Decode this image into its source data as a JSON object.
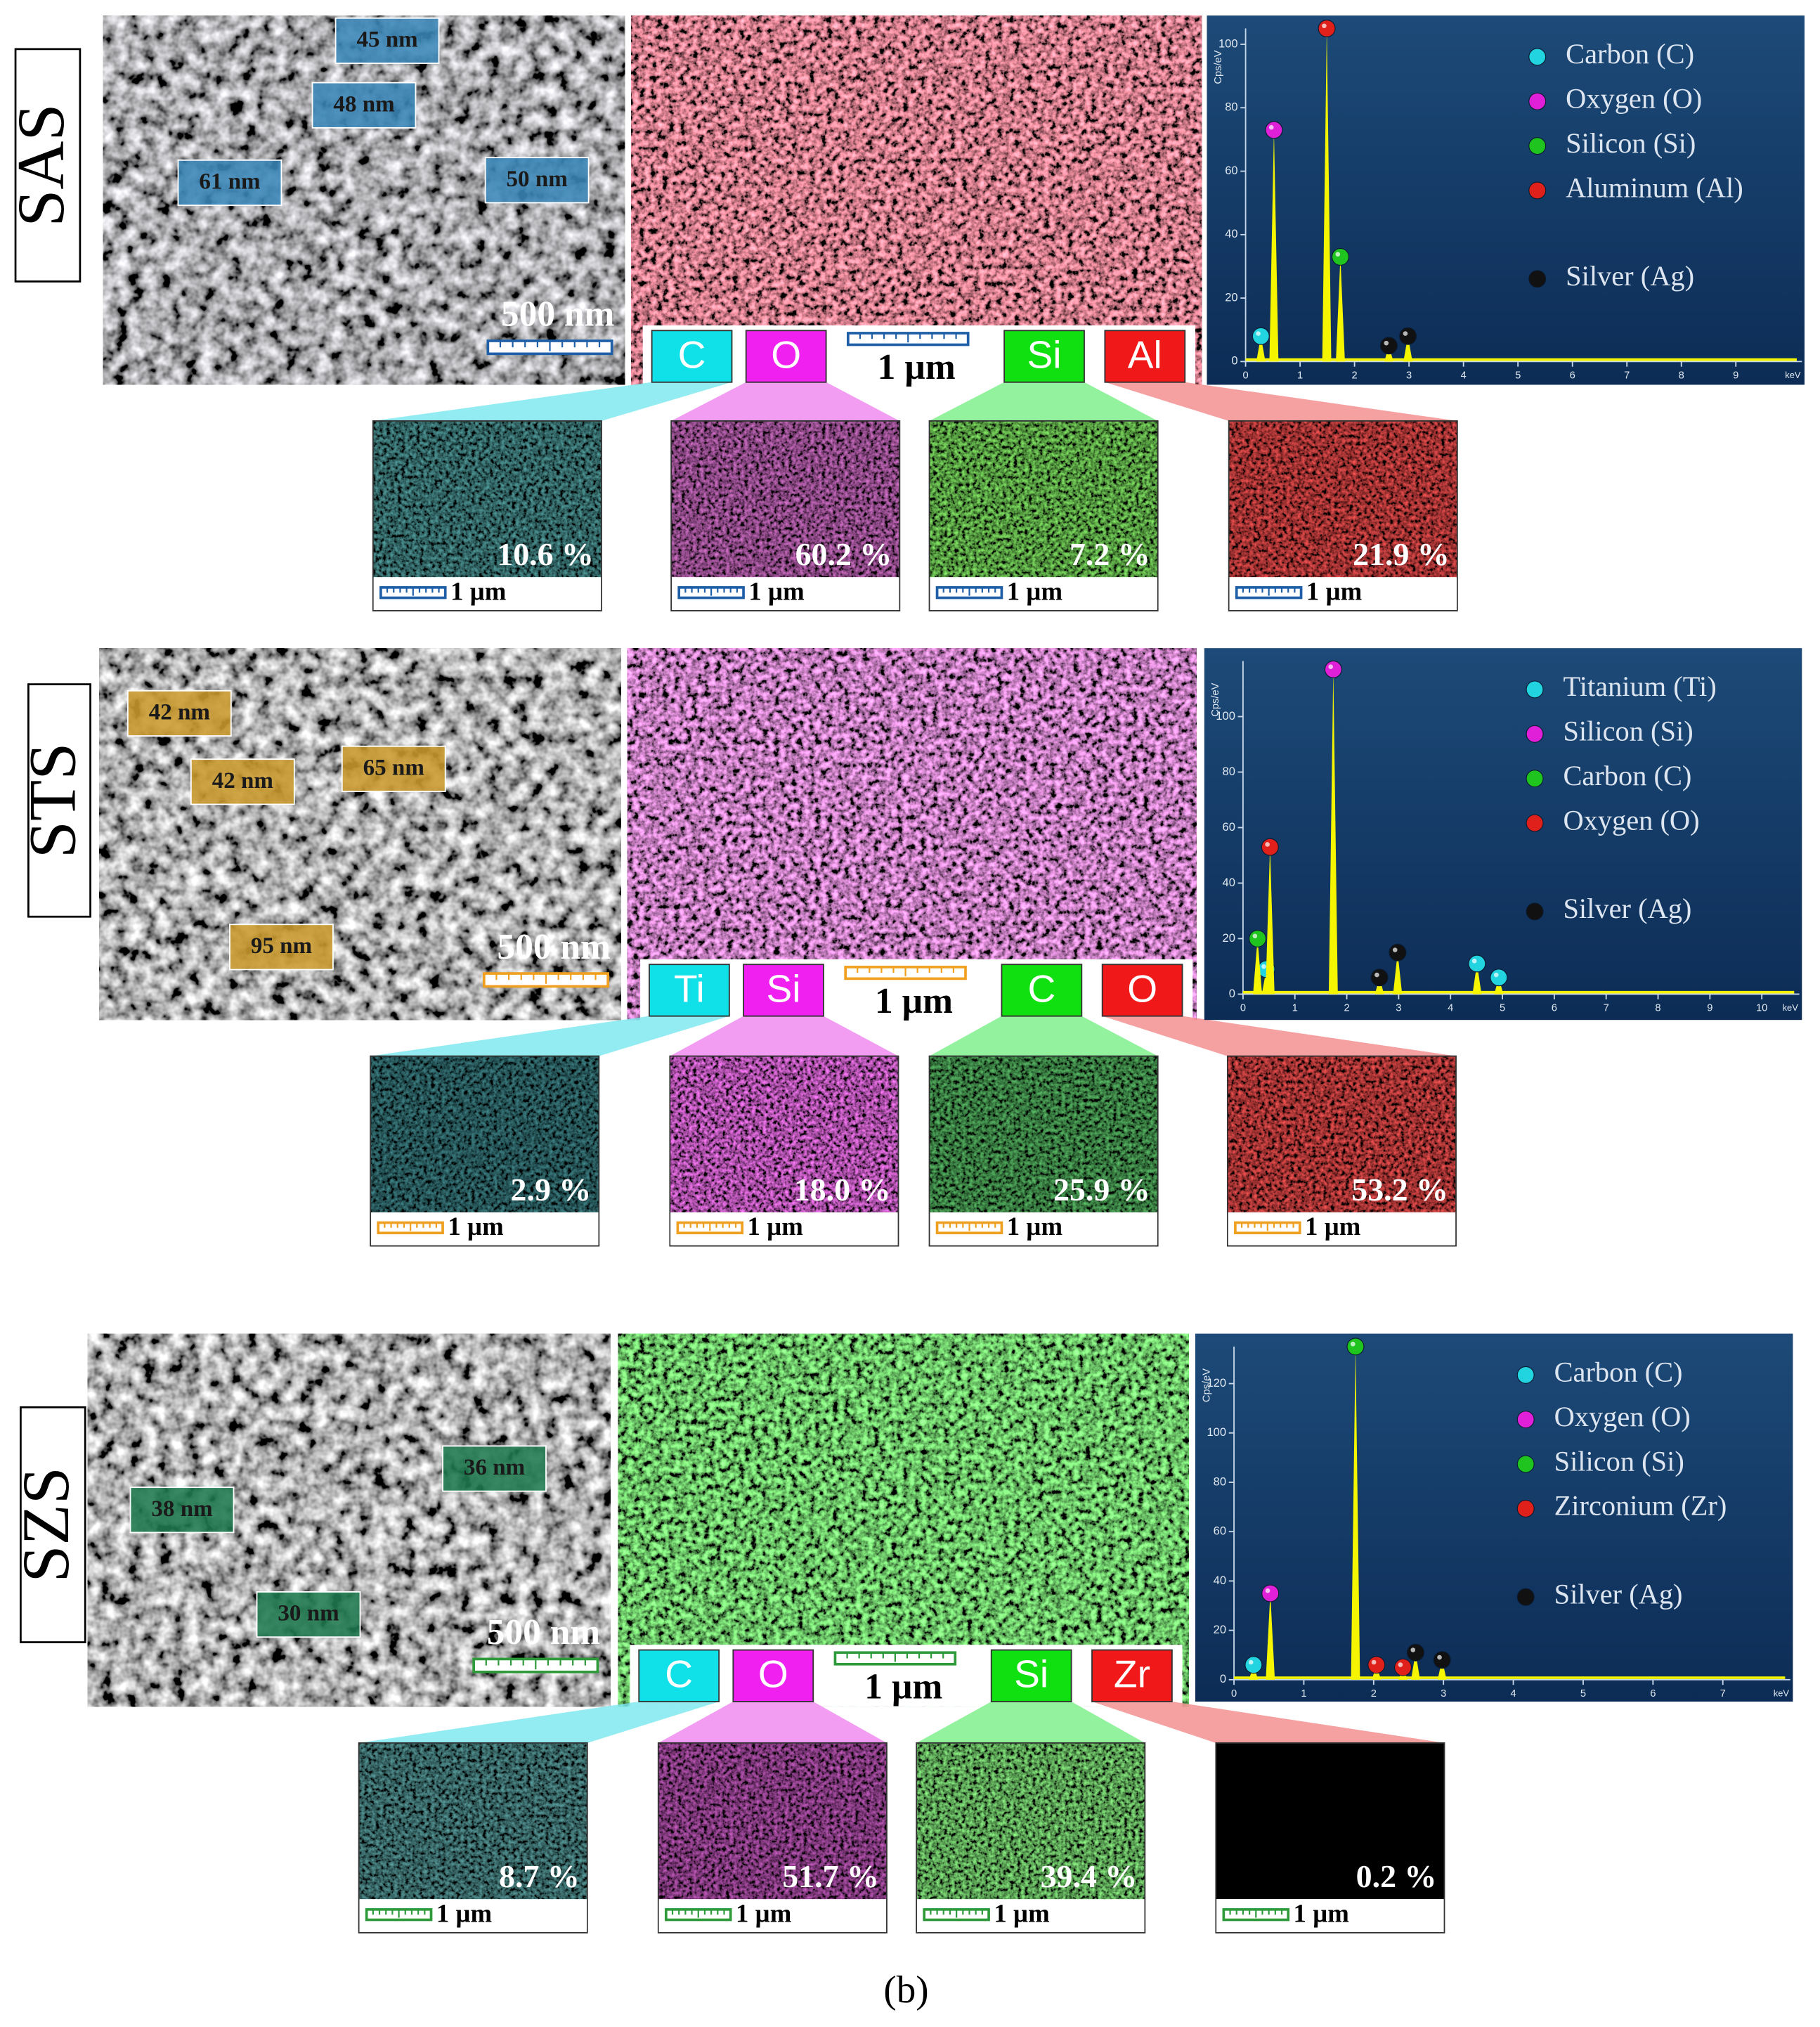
{
  "figure_label": "(b)",
  "samples": [
    {
      "name": "SAS",
      "sem": {
        "annotations": [
          "45 nm",
          "48 nm",
          "61 nm",
          "50 nm"
        ],
        "scale": "500 nm"
      },
      "mapping": {
        "scale": "1 µm",
        "elements": [
          "C",
          "O",
          "Si",
          "Al"
        ]
      },
      "maps": [
        {
          "percent": "10.6 %",
          "scale": "1 µm"
        },
        {
          "percent": "60.2 %",
          "scale": "1 µm"
        },
        {
          "percent": "7.2 %",
          "scale": "1 µm"
        },
        {
          "percent": "21.9 %",
          "scale": "1 µm"
        }
      ]
    },
    {
      "name": "STS",
      "sem": {
        "annotations": [
          "42 nm",
          "42 nm",
          "65 nm",
          "95 nm"
        ],
        "scale": "500 nm"
      },
      "mapping": {
        "scale": "1 µm",
        "elements": [
          "Ti",
          "Si",
          "C",
          "O"
        ]
      },
      "maps": [
        {
          "percent": "2.9 %",
          "scale": "1 µm"
        },
        {
          "percent": "18.0 %",
          "scale": "1 µm"
        },
        {
          "percent": "25.9 %",
          "scale": "1 µm"
        },
        {
          "percent": "53.2 %",
          "scale": "1 µm"
        }
      ]
    },
    {
      "name": "SZS",
      "sem": {
        "annotations": [
          "36 nm",
          "38 nm",
          "30 nm"
        ],
        "scale": "500 nm"
      },
      "mapping": {
        "scale": "1 µm",
        "elements": [
          "C",
          "O",
          "Si",
          "Zr"
        ]
      },
      "maps": [
        {
          "percent": "8.7 %",
          "scale": "1 µm"
        },
        {
          "percent": "51.7 %",
          "scale": "1 µm"
        },
        {
          "percent": "39.4 %",
          "scale": "1 µm"
        },
        {
          "percent": "0.2 %",
          "scale": "1 µm"
        }
      ]
    }
  ],
  "chart_data": [
    {
      "type": "spectrum",
      "x_label": "keV",
      "y_label": "Cps/eV",
      "xlim": [
        0,
        10
      ],
      "ylim": [
        0,
        105
      ],
      "xticks": [
        0,
        1,
        2,
        3,
        4,
        5,
        6,
        7,
        8,
        9
      ],
      "yticks": [
        0,
        20,
        40,
        60,
        80,
        100
      ],
      "series": [
        {
          "name": "Carbon (C)",
          "color": "#22d3e0",
          "x": [
            0.28
          ],
          "values": [
            8
          ]
        },
        {
          "name": "Oxygen (O)",
          "color": "#e020d8",
          "x": [
            0.52
          ],
          "values": [
            73
          ]
        },
        {
          "name": "Silicon (Si)",
          "color": "#1fc41f",
          "x": [
            1.74
          ],
          "values": [
            33
          ]
        },
        {
          "name": "Aluminum (Al)",
          "color": "#e0201a",
          "x": [
            1.49
          ],
          "values": [
            105
          ]
        },
        {
          "name": "Silver (Ag)",
          "color": "#111111",
          "x": [
            2.63,
            2.98
          ],
          "values": [
            5,
            8
          ]
        }
      ]
    },
    {
      "type": "spectrum",
      "x_label": "keV",
      "y_label": "Cps/eV",
      "xlim": [
        0,
        10.5
      ],
      "ylim": [
        0,
        120
      ],
      "xticks": [
        0,
        1,
        2,
        3,
        4,
        5,
        6,
        7,
        8,
        9,
        10
      ],
      "yticks": [
        0,
        20,
        40,
        60,
        80,
        100
      ],
      "series": [
        {
          "name": "Titanium (Ti)",
          "color": "#22d3e0",
          "x": [
            0.45,
            4.51,
            4.93
          ],
          "values": [
            9,
            11,
            6
          ]
        },
        {
          "name": "Silicon (Si)",
          "color": "#e020d8",
          "x": [
            1.74
          ],
          "values": [
            117
          ]
        },
        {
          "name": "Carbon (C)",
          "color": "#1fc41f",
          "x": [
            0.28
          ],
          "values": [
            20
          ]
        },
        {
          "name": "Oxygen (O)",
          "color": "#e0201a",
          "x": [
            0.52
          ],
          "values": [
            53
          ]
        },
        {
          "name": "Silver (Ag)",
          "color": "#111111",
          "x": [
            2.63,
            2.98
          ],
          "values": [
            6,
            15
          ]
        }
      ]
    },
    {
      "type": "spectrum",
      "x_label": "keV",
      "y_label": "Cps/eV",
      "xlim": [
        0,
        7.8
      ],
      "ylim": [
        0,
        135
      ],
      "xticks": [
        0,
        1,
        2,
        3,
        4,
        5,
        6,
        7
      ],
      "yticks": [
        0,
        20,
        40,
        60,
        80,
        100,
        120
      ],
      "series": [
        {
          "name": "Carbon (C)",
          "color": "#22d3e0",
          "x": [
            0.28
          ],
          "values": [
            6
          ]
        },
        {
          "name": "Oxygen (O)",
          "color": "#e020d8",
          "x": [
            0.52
          ],
          "values": [
            35
          ]
        },
        {
          "name": "Silicon (Si)",
          "color": "#1fc41f",
          "x": [
            1.74
          ],
          "values": [
            135
          ]
        },
        {
          "name": "Zirconium (Zr)",
          "color": "#e0201a",
          "x": [
            2.04,
            2.42
          ],
          "values": [
            6,
            5
          ]
        },
        {
          "name": "Silver (Ag)",
          "color": "#111111",
          "x": [
            2.6,
            2.98
          ],
          "values": [
            11,
            8
          ]
        }
      ]
    }
  ]
}
